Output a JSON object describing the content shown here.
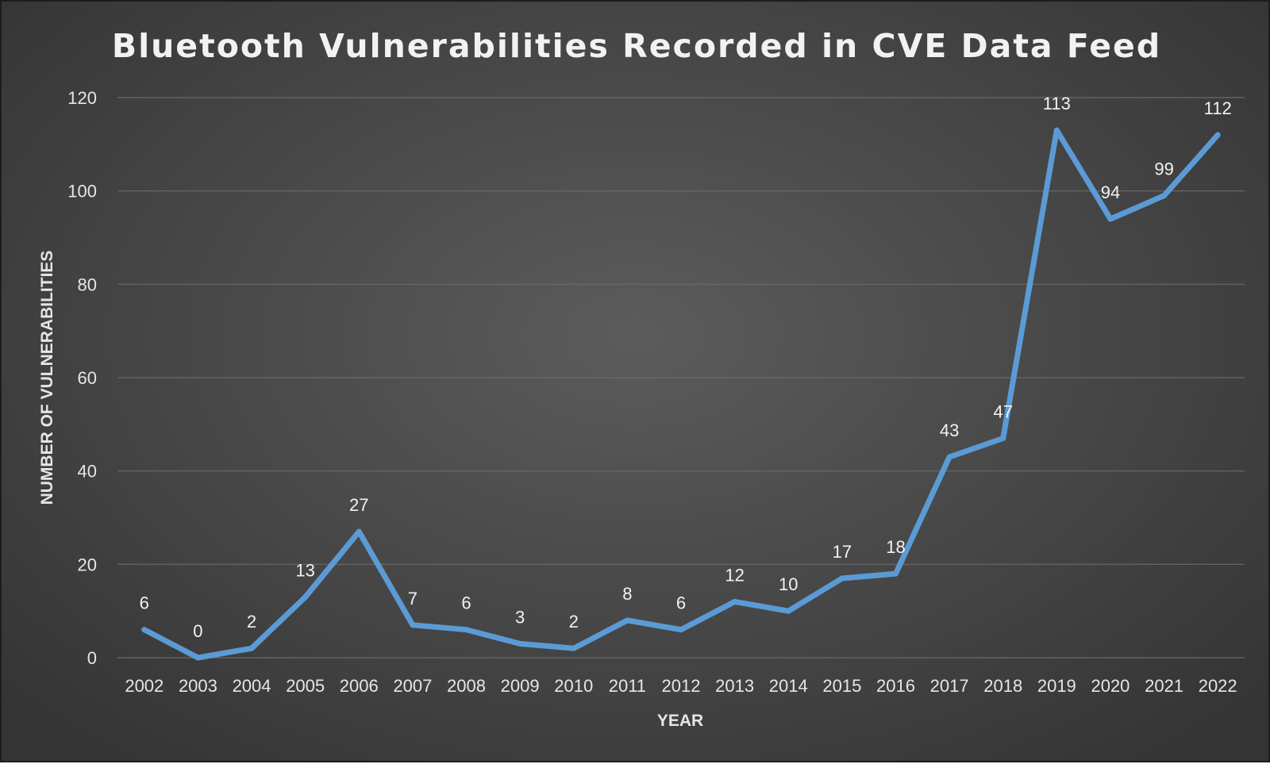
{
  "chart_data": {
    "type": "line",
    "title": "Bluetooth Vulnerabilities Recorded in CVE Data Feed",
    "xlabel": "YEAR",
    "ylabel": "NUMBER OF VULNERABILITIES",
    "categories": [
      "2002",
      "2003",
      "2004",
      "2005",
      "2006",
      "2007",
      "2008",
      "2009",
      "2010",
      "2011",
      "2012",
      "2013",
      "2014",
      "2015",
      "2016",
      "2017",
      "2018",
      "2019",
      "2020",
      "2021",
      "2022"
    ],
    "series": [
      {
        "values": [
          6,
          0,
          2,
          13,
          27,
          7,
          6,
          3,
          2,
          8,
          6,
          12,
          10,
          17,
          18,
          43,
          47,
          113,
          94,
          99,
          112
        ],
        "color": "#5b9bd5"
      }
    ],
    "ylim": [
      0,
      120
    ],
    "yticks": [
      0,
      20,
      40,
      60,
      80,
      100,
      120
    ],
    "grid": true,
    "legend": "none",
    "data_labels": true
  }
}
